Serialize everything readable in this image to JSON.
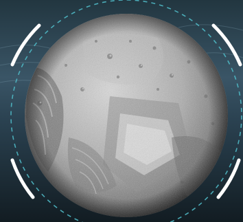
{
  "scene": {
    "subject": "moon-photo",
    "background": "water-dark",
    "colors": {
      "background_dark": "#16232b",
      "background_mid": "#3a5566",
      "moon_light": "#e6e6e6",
      "moon_mid": "#a3a3a3",
      "moon_dark": "#565656",
      "ring_dashes": "#4fb8c4",
      "ring_brackets": "#ffffff"
    }
  }
}
